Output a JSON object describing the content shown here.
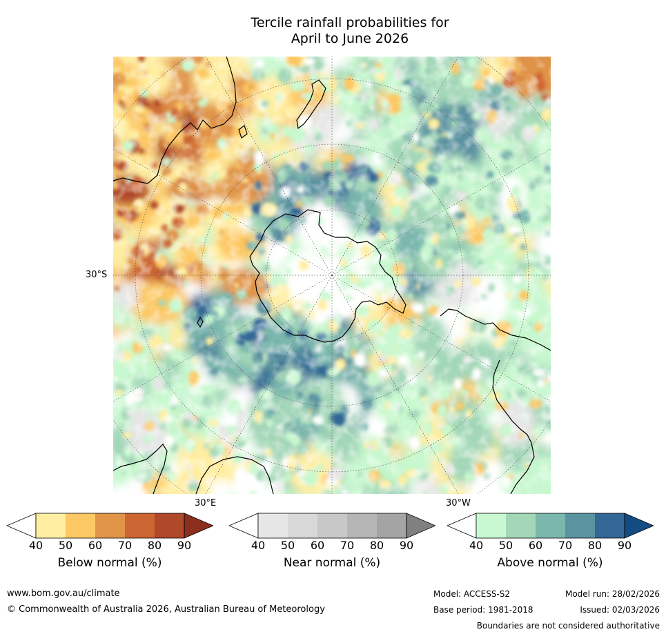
{
  "title": {
    "line1": "Tercile rainfall probabilities for",
    "line2": "April to June 2026"
  },
  "map": {
    "lat_label": "30°S",
    "lon_labels": [
      "30°E",
      "30°W"
    ],
    "colors": {
      "below": [
        "#ffeea1",
        "#fdc863",
        "#e09448",
        "#cd6533",
        "#b0482a",
        "#8c2e1d"
      ],
      "near": [
        "#e6e6e6",
        "#d8d8d8",
        "#c8c8c8",
        "#b6b6b6",
        "#a4a4a4",
        "#808080"
      ],
      "above": [
        "#c8f8cf",
        "#a3d7b8",
        "#7bb7ad",
        "#5b93a1",
        "#336796",
        "#134b83"
      ]
    }
  },
  "colorbars": [
    {
      "label": "Below normal (%)",
      "ticks": [
        "40",
        "50",
        "60",
        "70",
        "80",
        "90"
      ]
    },
    {
      "label": "Near normal (%)",
      "ticks": [
        "40",
        "50",
        "60",
        "70",
        "80",
        "90"
      ]
    },
    {
      "label": "Above normal (%)",
      "ticks": [
        "40",
        "50",
        "60",
        "70",
        "80",
        "90"
      ]
    }
  ],
  "footer": {
    "website": "www.bom.gov.au/climate",
    "copyright": "© Commonwealth of Australia 2026, Australian Bureau of Meteorology",
    "model": "Model: ACCESS-S2",
    "base_period": "Base period: 1981-2018",
    "model_run": "Model run: 28/02/2026",
    "issued": "Issued: 02/03/2026",
    "disclaimer": "Boundaries are not considered authoritative"
  }
}
